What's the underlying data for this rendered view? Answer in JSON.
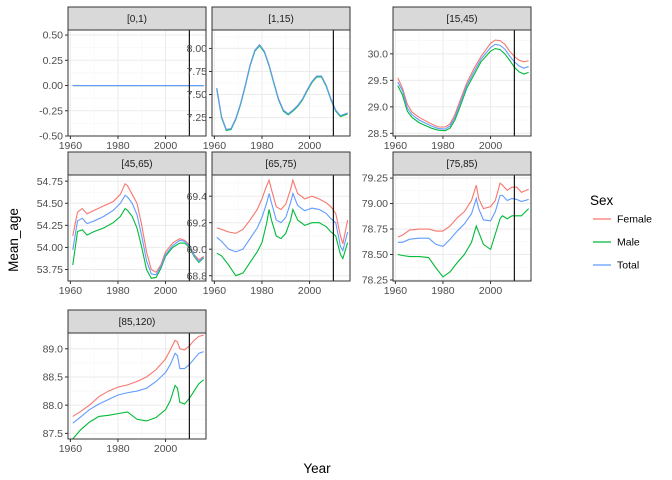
{
  "chart_data": {
    "type": "line",
    "layout": "facet_wrap",
    "xlabel": "Year",
    "ylabel": "Mean_age",
    "xlim": [
      1959,
      2017
    ],
    "x_ticks": [
      1960,
      1980,
      2000
    ],
    "vline_x": 2010,
    "grid": true,
    "legend": {
      "title": "Sex",
      "position": "right",
      "entries": [
        "Female",
        "Male",
        "Total"
      ]
    },
    "colors": {
      "Female": "#F8766D",
      "Male": "#00BA38",
      "Total": "#619CFF"
    },
    "panels": [
      {
        "title": "[0,1)",
        "ylim": [
          -0.5,
          0.55
        ],
        "y_ticks": [
          "0.50",
          "0.25",
          "0.00",
          "-0.25",
          "-0.50"
        ],
        "x": [
          1961,
          2016
        ],
        "series": [
          {
            "name": "Female",
            "values": [
              0,
              0
            ]
          },
          {
            "name": "Male",
            "values": [
              0,
              0
            ]
          },
          {
            "name": "Total",
            "values": [
              0,
              0
            ]
          }
        ]
      },
      {
        "title": "[1,15)",
        "ylim": [
          7.05,
          8.2
        ],
        "y_ticks": [
          "8.00",
          "7.75",
          "7.50",
          "7.25"
        ],
        "x": [
          1961,
          1963,
          1965,
          1967,
          1969,
          1971,
          1973,
          1975,
          1977,
          1979,
          1981,
          1983,
          1985,
          1987,
          1989,
          1991,
          1993,
          1995,
          1997,
          1999,
          2001,
          2003,
          2005,
          2007,
          2009,
          2011,
          2013,
          2015,
          2016
        ],
        "series": [
          {
            "name": "Female",
            "values": [
              7.57,
              7.26,
              7.12,
              7.13,
              7.24,
              7.4,
              7.6,
              7.82,
              7.98,
              8.04,
              7.97,
              7.82,
              7.63,
              7.45,
              7.33,
              7.29,
              7.33,
              7.38,
              7.45,
              7.55,
              7.64,
              7.7,
              7.7,
              7.6,
              7.45,
              7.33,
              7.27,
              7.29,
              7.3
            ]
          },
          {
            "name": "Male",
            "values": [
              7.56,
              7.25,
              7.11,
              7.12,
              7.23,
              7.39,
              7.59,
              7.81,
              7.97,
              8.03,
              7.96,
              7.81,
              7.62,
              7.44,
              7.32,
              7.28,
              7.32,
              7.37,
              7.44,
              7.54,
              7.63,
              7.69,
              7.69,
              7.59,
              7.44,
              7.32,
              7.26,
              7.28,
              7.29
            ]
          },
          {
            "name": "Total",
            "values": [
              7.57,
              7.26,
              7.12,
              7.13,
              7.24,
              7.4,
              7.6,
              7.82,
              7.98,
              8.04,
              7.97,
              7.82,
              7.63,
              7.45,
              7.33,
              7.29,
              7.33,
              7.38,
              7.45,
              7.55,
              7.64,
              7.7,
              7.7,
              7.6,
              7.45,
              7.33,
              7.27,
              7.29,
              7.3
            ]
          }
        ]
      },
      {
        "title": "[15,45)",
        "ylim": [
          28.45,
          30.45
        ],
        "y_ticks": [
          "30.0",
          "29.5",
          "29.0",
          "28.5"
        ],
        "x": [
          1961,
          1963,
          1965,
          1967,
          1970,
          1975,
          1978,
          1981,
          1983,
          1985,
          1987,
          1990,
          1993,
          1996,
          2000,
          2002,
          2004,
          2006,
          2008,
          2010,
          2012,
          2014,
          2016
        ],
        "series": [
          {
            "name": "Female",
            "values": [
              29.55,
              29.35,
              29.05,
              28.9,
              28.8,
              28.68,
              28.62,
              28.62,
              28.68,
              28.85,
              29.1,
              29.45,
              29.72,
              29.95,
              30.2,
              30.26,
              30.25,
              30.18,
              30.05,
              29.95,
              29.88,
              29.85,
              29.87
            ]
          },
          {
            "name": "Male",
            "values": [
              29.4,
              29.22,
              28.92,
              28.8,
              28.7,
              28.6,
              28.56,
              28.55,
              28.6,
              28.75,
              28.98,
              29.35,
              29.6,
              29.85,
              30.05,
              30.1,
              30.08,
              30.0,
              29.88,
              29.75,
              29.66,
              29.62,
              29.65
            ]
          },
          {
            "name": "Total",
            "values": [
              29.47,
              29.3,
              28.98,
              28.85,
              28.75,
              28.64,
              28.59,
              28.58,
              28.64,
              28.8,
              29.04,
              29.4,
              29.66,
              29.9,
              30.12,
              30.18,
              30.16,
              30.09,
              29.96,
              29.85,
              29.77,
              29.73,
              29.76
            ]
          }
        ]
      },
      {
        "title": "[45,65)",
        "ylim": [
          53.62,
          54.82
        ],
        "y_ticks": [
          "54.75",
          "54.50",
          "54.25",
          "54.00",
          "53.75"
        ],
        "x": [
          1961,
          1963,
          1965,
          1967,
          1970,
          1974,
          1978,
          1981,
          1983,
          1984,
          1986,
          1988,
          1990,
          1992,
          1994,
          1996,
          1998,
          2000,
          2003,
          2006,
          2008,
          2010,
          2012,
          2014,
          2016
        ],
        "series": [
          {
            "name": "Female",
            "values": [
              54.13,
              54.4,
              54.44,
              54.38,
              54.42,
              54.47,
              54.52,
              54.6,
              54.72,
              54.7,
              54.6,
              54.5,
              54.25,
              53.95,
              53.75,
              53.72,
              53.8,
              53.95,
              54.05,
              54.1,
              54.08,
              54.03,
              53.92,
              53.86,
              53.9
            ]
          },
          {
            "name": "Male",
            "values": [
              53.8,
              54.18,
              54.2,
              54.14,
              54.18,
              54.22,
              54.28,
              54.35,
              54.44,
              54.42,
              54.35,
              54.22,
              54.0,
              53.75,
              53.65,
              53.66,
              53.76,
              53.9,
              54.0,
              54.05,
              54.05,
              54.0,
              53.9,
              53.83,
              53.88
            ]
          },
          {
            "name": "Total",
            "values": [
              53.97,
              54.3,
              54.33,
              54.27,
              54.3,
              54.35,
              54.42,
              54.5,
              54.59,
              54.57,
              54.5,
              54.37,
              54.13,
              53.85,
              53.7,
              53.69,
              53.78,
              53.92,
              54.02,
              54.08,
              54.07,
              54.02,
              53.91,
              53.84,
              53.89
            ]
          }
        ]
      },
      {
        "title": "[65,75)",
        "ylim": [
          68.76,
          69.56
        ],
        "y_ticks": [
          "69.4",
          "69.2",
          "69.0",
          "68.8"
        ],
        "x": [
          1961,
          1963,
          1966,
          1969,
          1972,
          1975,
          1978,
          1980,
          1982,
          1983,
          1984,
          1986,
          1988,
          1990,
          1992,
          1993,
          1995,
          1998,
          2001,
          2004,
          2007,
          2009,
          2011,
          2013,
          2014,
          2016
        ],
        "series": [
          {
            "name": "Female",
            "values": [
              69.16,
              69.15,
              69.13,
              69.12,
              69.15,
              69.22,
              69.3,
              69.38,
              69.48,
              69.52,
              69.45,
              69.32,
              69.3,
              69.34,
              69.45,
              69.52,
              69.42,
              69.38,
              69.4,
              69.38,
              69.35,
              69.32,
              69.27,
              69.1,
              69.04,
              69.22
            ]
          },
          {
            "name": "Male",
            "values": [
              68.97,
              68.95,
              68.88,
              68.8,
              68.82,
              68.9,
              68.98,
              69.05,
              69.2,
              69.3,
              69.22,
              69.1,
              69.08,
              69.12,
              69.22,
              69.3,
              69.22,
              69.18,
              69.2,
              69.2,
              69.17,
              69.13,
              69.1,
              68.96,
              68.93,
              69.05
            ]
          },
          {
            "name": "Total",
            "values": [
              69.09,
              69.06,
              69.0,
              68.98,
              69.0,
              69.08,
              69.16,
              69.24,
              69.35,
              69.42,
              69.35,
              69.22,
              69.2,
              69.24,
              69.35,
              69.42,
              69.33,
              69.29,
              69.31,
              69.3,
              69.27,
              69.23,
              69.2,
              69.02,
              68.99,
              69.13
            ]
          }
        ]
      },
      {
        "title": "[75,85)",
        "ylim": [
          78.24,
          79.28
        ],
        "y_ticks": [
          "79.25",
          "79.00",
          "78.75",
          "78.50",
          "78.25"
        ],
        "x": [
          1961,
          1963,
          1966,
          1970,
          1974,
          1977,
          1980,
          1983,
          1986,
          1989,
          1992,
          1994,
          1995,
          1997,
          2000,
          2002,
          2004,
          2005,
          2007,
          2009,
          2011,
          2013,
          2016
        ],
        "series": [
          {
            "name": "Female",
            "values": [
              78.67,
              78.69,
              78.74,
              78.75,
              78.75,
              78.73,
              78.73,
              78.78,
              78.86,
              78.92,
              79.03,
              79.18,
              79.05,
              78.95,
              78.97,
              79.03,
              79.2,
              79.18,
              79.13,
              79.16,
              79.16,
              79.11,
              79.14
            ]
          },
          {
            "name": "Male",
            "values": [
              78.5,
              78.49,
              78.48,
              78.48,
              78.47,
              78.37,
              78.28,
              78.33,
              78.42,
              78.5,
              78.62,
              78.78,
              78.72,
              78.6,
              78.55,
              78.7,
              78.85,
              78.88,
              78.85,
              78.88,
              78.88,
              78.88,
              78.95
            ]
          },
          {
            "name": "Total",
            "values": [
              78.62,
              78.62,
              78.65,
              78.66,
              78.66,
              78.6,
              78.58,
              78.65,
              78.73,
              78.8,
              78.9,
              79.05,
              78.95,
              78.84,
              78.83,
              78.92,
              79.08,
              79.08,
              79.03,
              79.05,
              79.04,
              79.02,
              79.04
            ]
          }
        ]
      },
      {
        "title": "[85,120)",
        "ylim": [
          87.4,
          89.28
        ],
        "y_ticks": [
          "89.0",
          "88.5",
          "88.0",
          "87.5"
        ],
        "x": [
          1961,
          1964,
          1968,
          1972,
          1976,
          1980,
          1984,
          1988,
          1992,
          1996,
          2000,
          2002,
          2004,
          2005,
          2006,
          2008,
          2010,
          2012,
          2014,
          2016
        ],
        "series": [
          {
            "name": "Female",
            "values": [
              87.8,
              87.88,
              88.0,
              88.15,
              88.25,
              88.32,
              88.36,
              88.42,
              88.5,
              88.63,
              88.82,
              88.98,
              89.15,
              89.12,
              89.0,
              88.98,
              89.05,
              89.15,
              89.22,
              89.24
            ]
          },
          {
            "name": "Male",
            "values": [
              87.4,
              87.55,
              87.7,
              87.8,
              87.82,
              87.85,
              87.88,
              87.75,
              87.72,
              87.78,
              87.92,
              88.08,
              88.35,
              88.3,
              88.05,
              88.02,
              88.12,
              88.25,
              88.38,
              88.45
            ]
          },
          {
            "name": "Total",
            "values": [
              87.68,
              87.78,
              87.92,
              88.02,
              88.1,
              88.18,
              88.22,
              88.25,
              88.3,
              88.42,
              88.58,
              88.72,
              88.92,
              88.88,
              88.65,
              88.65,
              88.72,
              88.82,
              88.92,
              88.95
            ]
          }
        ]
      }
    ]
  }
}
